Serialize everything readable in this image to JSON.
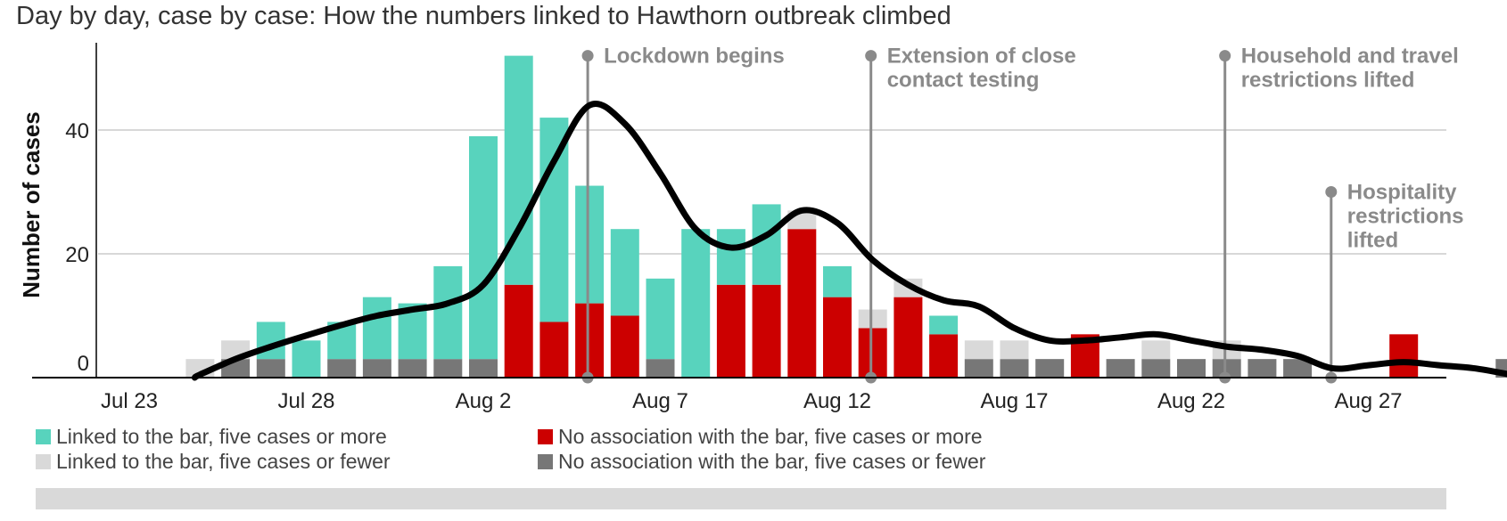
{
  "chart_data": {
    "type": "bar",
    "title": "Day by day, case by case: How the numbers linked to Hawthorn outbreak climbed",
    "ylabel": "Number of cases",
    "xlabel": "",
    "ylim": [
      0,
      54
    ],
    "yticks": [
      0,
      20,
      40
    ],
    "grid": true,
    "stacked": true,
    "categories": [
      "Jul 23",
      "Jul 24",
      "Jul 25",
      "Jul 26",
      "Jul 27",
      "Jul 28",
      "Jul 29",
      "Jul 30",
      "Jul 31",
      "Aug 1",
      "Aug 2",
      "Aug 3",
      "Aug 4",
      "Aug 5",
      "Aug 6",
      "Aug 7",
      "Aug 8",
      "Aug 9",
      "Aug 10",
      "Aug 11",
      "Aug 12",
      "Aug 13",
      "Aug 14",
      "Aug 15",
      "Aug 16",
      "Aug 17",
      "Aug 18",
      "Aug 19",
      "Aug 20",
      "Aug 21",
      "Aug 22",
      "Aug 23",
      "Aug 24",
      "Aug 25",
      "Aug 26",
      "Aug 27",
      "Aug 28",
      "Aug 29",
      "Aug 30",
      "Aug 31"
    ],
    "x_tick_labels": [
      "Jul 23",
      "Jul 28",
      "Aug 2",
      "Aug 7",
      "Aug 12",
      "Aug 17",
      "Aug 22",
      "Aug 27"
    ],
    "series": [
      {
        "name": "No association with the bar, five cases or fewer",
        "color": "#777777",
        "values": [
          0,
          0,
          0,
          3,
          3,
          0,
          3,
          3,
          3,
          3,
          3,
          0,
          0,
          0,
          0,
          3,
          0,
          0,
          0,
          0,
          0,
          0,
          0,
          0,
          3,
          3,
          3,
          0,
          3,
          3,
          3,
          3,
          3,
          3,
          0,
          0,
          0,
          0,
          0,
          3
        ]
      },
      {
        "name": "No association with the bar, five cases or more",
        "color": "#cc0000",
        "values": [
          0,
          0,
          0,
          0,
          0,
          0,
          0,
          0,
          0,
          0,
          0,
          15,
          9,
          12,
          10,
          0,
          0,
          15,
          15,
          24,
          13,
          8,
          13,
          7,
          0,
          0,
          0,
          7,
          0,
          0,
          0,
          0,
          0,
          0,
          0,
          0,
          7,
          0,
          0,
          0
        ]
      },
      {
        "name": "Linked to the bar, five cases or more",
        "color": "#58d3bd",
        "values": [
          0,
          0,
          0,
          0,
          6,
          6,
          6,
          10,
          9,
          15,
          36,
          37,
          33,
          19,
          14,
          13,
          24,
          9,
          13,
          0,
          5,
          0,
          0,
          3,
          0,
          0,
          0,
          0,
          0,
          0,
          0,
          0,
          0,
          0,
          0,
          0,
          0,
          0,
          0,
          0
        ]
      },
      {
        "name": "Linked to the bar, five cases or fewer",
        "color": "#d9d9d9",
        "values": [
          0,
          0,
          3,
          3,
          0,
          0,
          0,
          0,
          0,
          0,
          0,
          0,
          0,
          0,
          0,
          0,
          0,
          0,
          0,
          3,
          0,
          3,
          3,
          0,
          3,
          3,
          0,
          0,
          0,
          3,
          0,
          3,
          0,
          0,
          0,
          0,
          0,
          0,
          0,
          0
        ]
      }
    ],
    "average_line": {
      "color": "#000000",
      "values": [
        null,
        null,
        0.5,
        3,
        5,
        6.8,
        8.5,
        10,
        11,
        12,
        15,
        24,
        35,
        44,
        41,
        33,
        24,
        21,
        23,
        27,
        25,
        19,
        15,
        12.5,
        11.5,
        8,
        6,
        6,
        6.5,
        7,
        6,
        5,
        4.5,
        3.5,
        1.5,
        2,
        2.5,
        2,
        1.5,
        0.5
      ]
    },
    "annotations": [
      {
        "date": "Aug 5",
        "lines": [
          "Lockdown begins"
        ],
        "top": 52
      },
      {
        "date": "Aug 13",
        "lines": [
          "Extension of close",
          "contact testing"
        ],
        "top": 52
      },
      {
        "date": "Aug 23",
        "lines": [
          "Household and travel",
          "restrictions lifted"
        ],
        "top": 52
      },
      {
        "date": "Aug 26",
        "lines": [
          "Hospitality",
          "restrictions",
          "lifted"
        ],
        "top": 30
      }
    ]
  },
  "legend": {
    "items": [
      {
        "label": "Linked to the bar, five cases or more",
        "color": "#58d3bd"
      },
      {
        "label": "No association with the bar, five cases or more",
        "color": "#cc0000"
      },
      {
        "label": "Linked to the bar, five cases or fewer",
        "color": "#d9d9d9"
      },
      {
        "label": "No association with the bar, five cases or fewer",
        "color": "#777777"
      }
    ]
  },
  "colors": {
    "grid": "#cccccc",
    "annotation": "#8a8a8a",
    "axis": "#000000",
    "footer": "#d9d9d9"
  }
}
